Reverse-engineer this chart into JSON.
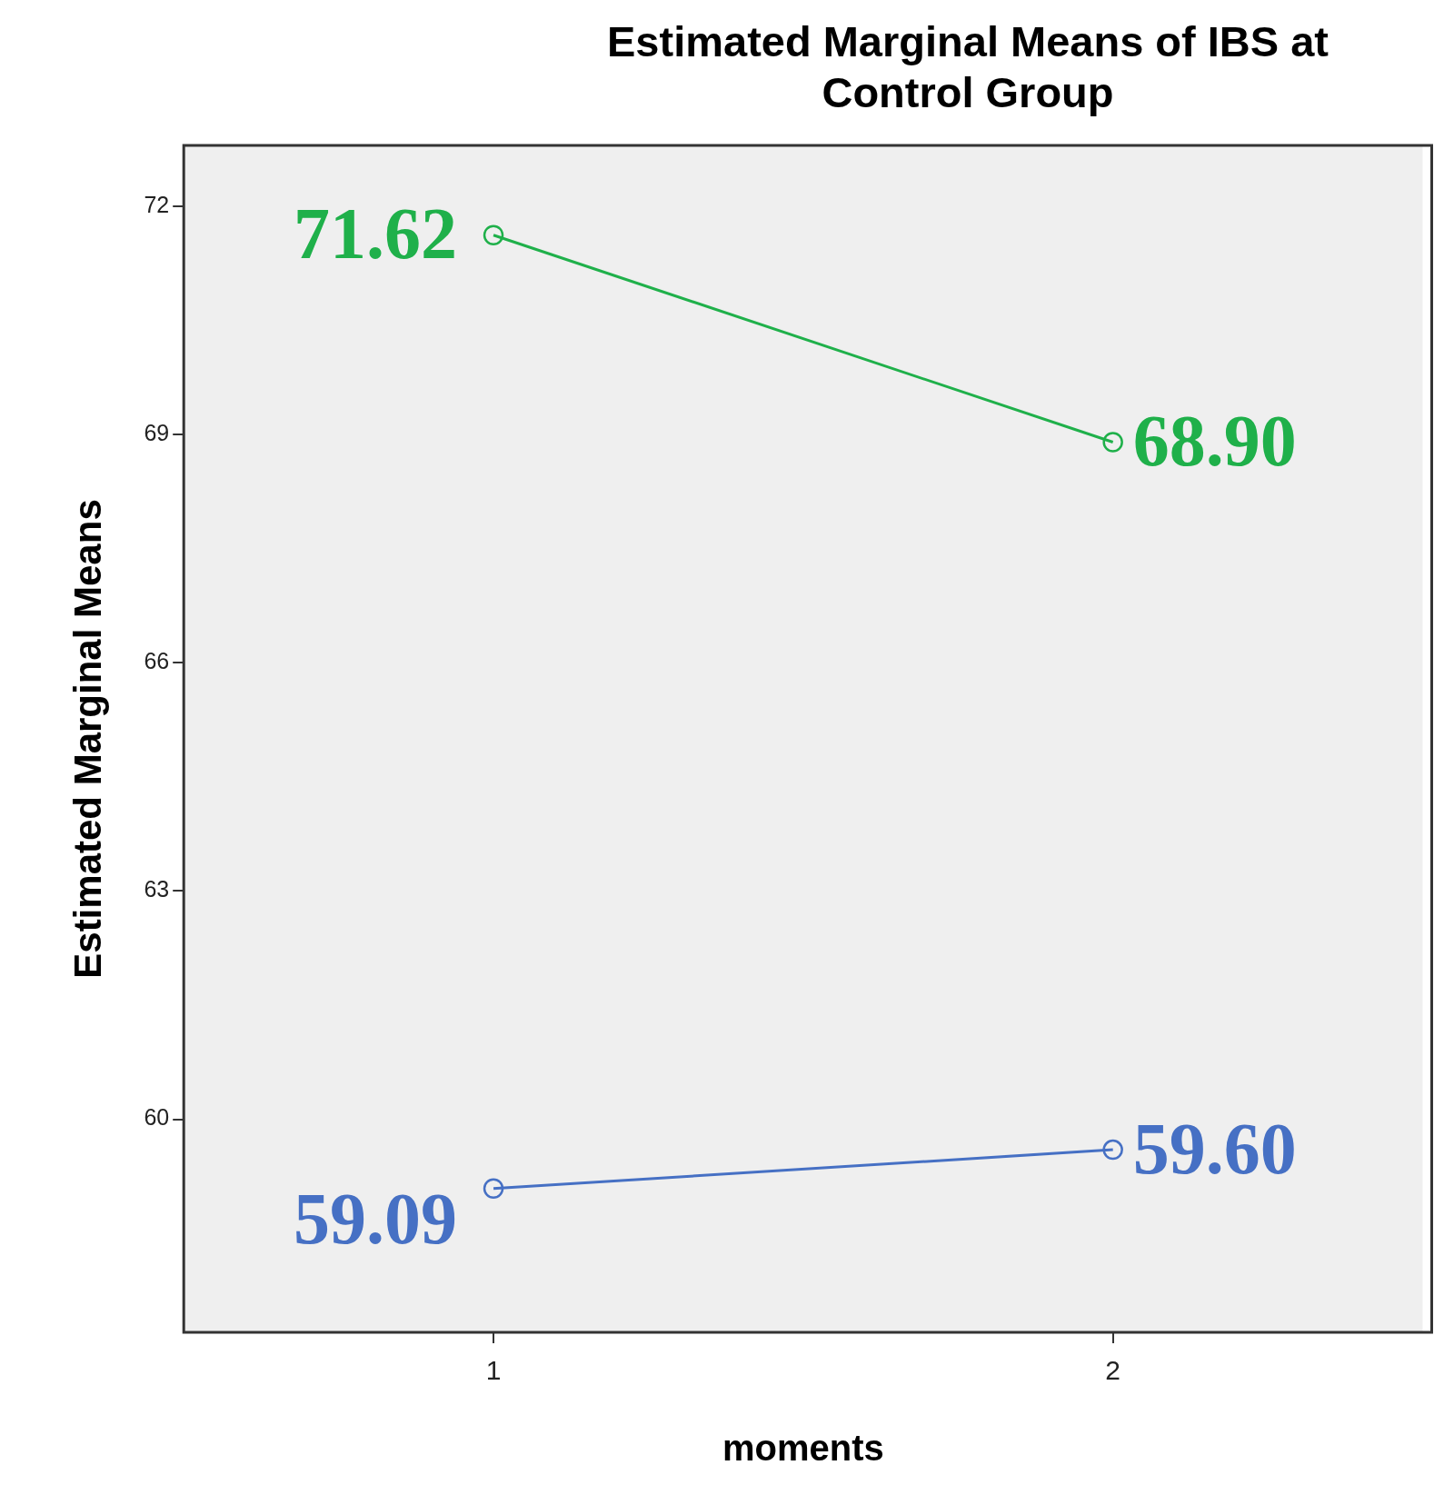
{
  "chart_data": {
    "type": "line",
    "title": "Estimated Marginal Means of IBS at Control Group",
    "xlabel": "moments",
    "ylabel": "Estimated Marginal Means",
    "categories": [
      "1",
      "2"
    ],
    "series": [
      {
        "color": "#1fb04a",
        "values": [
          71.62,
          68.9
        ],
        "value_labels": [
          "71.62",
          "68.90"
        ]
      },
      {
        "color": "#4670c4",
        "values": [
          59.09,
          59.6
        ],
        "value_labels": [
          "59.09",
          "59.60"
        ]
      }
    ],
    "ylim": [
      57.2,
      72.8
    ],
    "yticks": [
      60,
      63,
      66,
      69,
      72
    ],
    "grid": false,
    "legend": false,
    "marker": "circle",
    "line_style": "solid"
  }
}
